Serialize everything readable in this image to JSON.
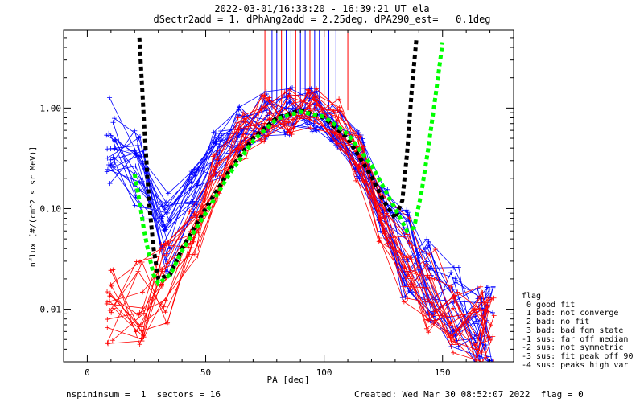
{
  "header": {
    "title_line1": "2022-03-01/16:33:20 - 16:39:21 UT ela",
    "title_line2": "dSectr2add = 1, dPhAng2add = 2.25deg, dPA290_est=   0.1deg"
  },
  "footer": {
    "left": "nspininsum =  1  sectors = 16",
    "right": "Created: Wed Mar 30 08:52:07 2022  flag = 0"
  },
  "legend": {
    "title": "flag",
    "items": [
      " 0 good fit",
      " 1 bad: not converge",
      " 2 bad: no fit",
      " 3 bad: bad fgm state",
      "-1 sus: far off median",
      "-2 sus: not symmetric",
      "-3 sus: fit peak off 90",
      "-4 sus: peaks high var"
    ]
  },
  "colors": {
    "series_a": "#0000ff",
    "series_b": "#ff0000",
    "fit_dark": "#000000",
    "fit_light": "#00ff00",
    "axes": "#000000"
  },
  "chart_data": {
    "type": "line",
    "xlabel": "PA [deg]",
    "ylabel": "nflux [#/(cm^2 s sr MeV)]",
    "xlim": [
      -10,
      180
    ],
    "ylim": [
      0.003,
      6
    ],
    "yscale": "log",
    "xticks": [
      0,
      50,
      100,
      150
    ],
    "yticks": [
      0.01,
      0.1,
      1.0
    ],
    "ytick_labels": [
      "0.01",
      "0.10",
      "1.00"
    ],
    "grid": false,
    "series": [
      {
        "color": "blue",
        "x": [
          10,
          22,
          33,
          45,
          55,
          65,
          75,
          85,
          95,
          105,
          115,
          125,
          135,
          145,
          155,
          165,
          170
        ],
        "y": [
          0.47,
          0.22,
          0.06,
          0.14,
          0.35,
          0.62,
          0.85,
          0.95,
          0.93,
          0.72,
          0.35,
          0.09,
          0.035,
          0.018,
          0.012,
          0.008,
          0.006
        ],
        "repeats": 22
      },
      {
        "color": "red",
        "x": [
          10,
          22,
          33,
          45,
          55,
          65,
          75,
          85,
          95,
          105,
          115,
          125,
          135,
          145,
          155,
          165,
          170
        ],
        "y": [
          0.009,
          0.012,
          0.02,
          0.06,
          0.22,
          0.55,
          0.82,
          0.94,
          0.92,
          0.7,
          0.33,
          0.08,
          0.03,
          0.016,
          0.01,
          0.007,
          0.005
        ],
        "repeats": 18
      },
      {
        "color": "black",
        "style": "dotted",
        "x": [
          22,
          24,
          26,
          28,
          30,
          35,
          40,
          50,
          60,
          70,
          80,
          90,
          100,
          110,
          120,
          125,
          130,
          133,
          135,
          137,
          139
        ],
        "y": [
          5,
          0.7,
          0.12,
          0.04,
          0.02,
          0.022,
          0.04,
          0.1,
          0.24,
          0.5,
          0.8,
          0.95,
          0.8,
          0.5,
          0.21,
          0.12,
          0.08,
          0.12,
          0.35,
          1.5,
          5
        ],
        "repeats": 1
      },
      {
        "color": "green",
        "style": "dotted",
        "x": [
          20,
          22,
          24,
          26,
          28,
          30,
          35,
          40,
          50,
          60,
          70,
          80,
          90,
          100,
          110,
          120,
          130,
          135,
          138,
          141,
          144,
          147,
          150
        ],
        "y": [
          0.22,
          0.12,
          0.06,
          0.035,
          0.022,
          0.018,
          0.022,
          0.038,
          0.09,
          0.22,
          0.47,
          0.78,
          0.92,
          0.82,
          0.55,
          0.27,
          0.1,
          0.06,
          0.065,
          0.14,
          0.4,
          1.3,
          4.5
        ],
        "repeats": 1
      }
    ],
    "spikes": {
      "x": [
        75,
        78,
        80,
        82,
        84,
        86,
        88,
        90,
        92,
        94,
        96,
        98,
        100,
        102,
        105,
        110
      ],
      "y_from": 0.95,
      "y_to": 6
    }
  }
}
